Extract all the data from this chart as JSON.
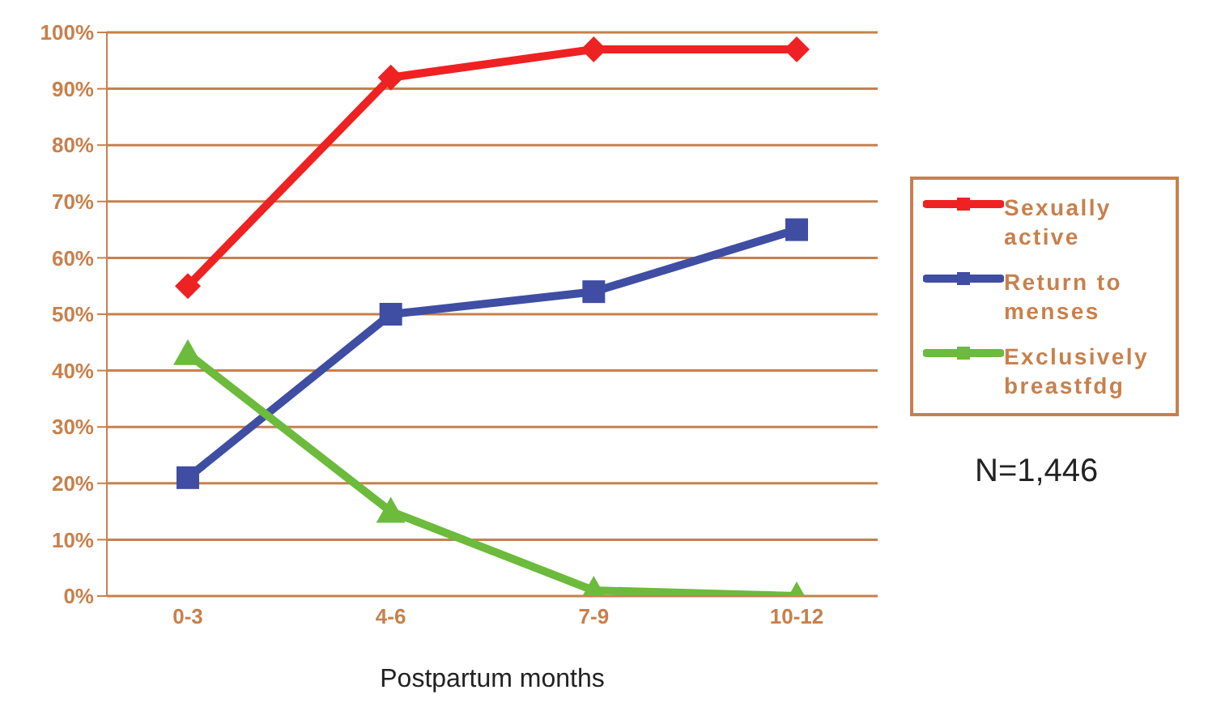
{
  "chart_data": {
    "type": "line",
    "xlabel": "Postpartum months",
    "categories": [
      "0-3",
      "4-6",
      "7-9",
      "10-12"
    ],
    "series": [
      {
        "name": "Sexually active",
        "color": "#ee2222",
        "marker": "diamond",
        "values": [
          55,
          92,
          97,
          97
        ]
      },
      {
        "name": "Return to menses",
        "color": "#3f4ea3",
        "marker": "square",
        "values": [
          21,
          50,
          54,
          65
        ]
      },
      {
        "name": "Exclusively breastfdg",
        "color": "#6cbb3c",
        "marker": "triangle",
        "values": [
          43,
          15,
          1,
          0
        ]
      }
    ],
    "ylim": [
      0,
      100
    ],
    "yticks": [
      {
        "value": 0,
        "label": "0%"
      },
      {
        "value": 10,
        "label": "10%"
      },
      {
        "value": 20,
        "label": "20%"
      },
      {
        "value": 30,
        "label": "30%"
      },
      {
        "value": 40,
        "label": "40%"
      },
      {
        "value": 50,
        "label": "50%"
      },
      {
        "value": 60,
        "label": "60%"
      },
      {
        "value": 70,
        "label": "70%"
      },
      {
        "value": 80,
        "label": "80%"
      },
      {
        "value": 90,
        "label": "90%"
      },
      {
        "value": 100,
        "label": "100%"
      }
    ],
    "grid": "y",
    "legend": "right",
    "line_style": "solid",
    "annotations": [
      "N=1,446"
    ]
  }
}
